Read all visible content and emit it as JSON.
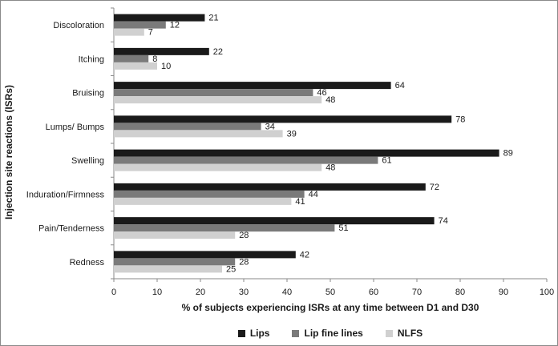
{
  "chart_data": {
    "type": "bar",
    "orientation": "horizontal",
    "categories": [
      "Discoloration",
      "Itching",
      "Bruising",
      "Lumps/ Bumps",
      "Swelling",
      "Induration/Firmness",
      "Pain/Tenderness",
      "Redness"
    ],
    "series": [
      {
        "name": "Lips",
        "color": "#1a1a1a",
        "values": [
          21,
          22,
          64,
          78,
          89,
          72,
          74,
          42
        ]
      },
      {
        "name": "Lip fine lines",
        "color": "#7a7a7a",
        "values": [
          12,
          8,
          46,
          34,
          61,
          44,
          51,
          28
        ]
      },
      {
        "name": "NLFS",
        "color": "#d0d0d0",
        "values": [
          7,
          10,
          48,
          39,
          48,
          41,
          28,
          25
        ]
      }
    ],
    "xlabel": "% of subjects experiencing ISRs at any time between D1 and D30",
    "ylabel": "Injection site reactions (ISRs)",
    "xlim": [
      0,
      100
    ],
    "xticks": [
      0,
      10,
      20,
      30,
      40,
      50,
      60,
      70,
      80,
      90,
      100
    ],
    "legend_position": "bottom",
    "grid": false
  }
}
